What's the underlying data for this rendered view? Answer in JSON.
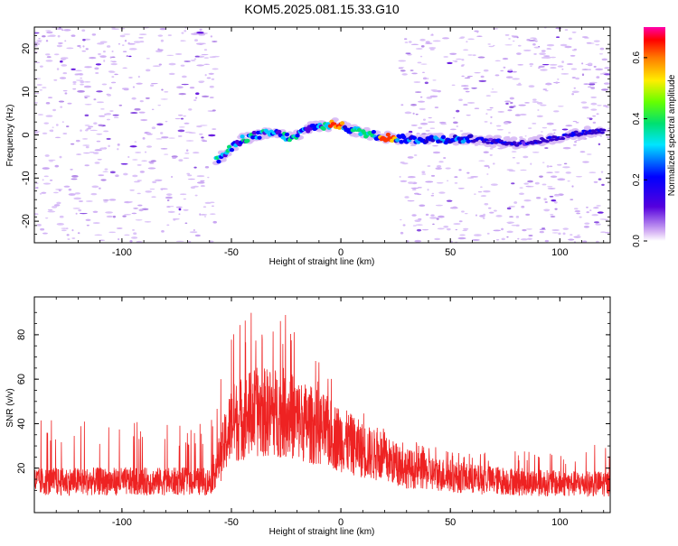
{
  "title": "KOM5.2025.081.15.33.G10",
  "colors": {
    "snr_line": "#ee2222",
    "frame": "#000000",
    "background": "#ffffff"
  },
  "chart_data": [
    {
      "type": "heatmap",
      "xlabel": "Height of straight line (km)",
      "ylabel": "Frequency (Hz)",
      "xlim": [
        -140,
        123
      ],
      "ylim": [
        -25,
        25
      ],
      "xticks": [
        -100,
        -50,
        0,
        50,
        100
      ],
      "yticks": [
        -20,
        -10,
        0,
        10,
        20
      ],
      "colorbar": {
        "label": "Normalized spectral amplitude",
        "range": [
          0,
          0.7
        ],
        "ticks": [
          "0.0",
          "0.2",
          "0.4",
          "0.6"
        ],
        "colormap": "rainbow (white/lavender to magenta)"
      },
      "signal_trace": {
        "x": [
          -57,
          -52,
          -45,
          -38,
          -30,
          -22,
          -17,
          -12,
          -7,
          -2,
          3,
          10,
          20,
          30,
          40,
          50,
          60,
          70,
          80,
          90,
          100,
          110,
          120
        ],
        "freq": [
          -6,
          -4,
          -1,
          0,
          0.5,
          -1,
          1,
          2,
          2,
          2.5,
          1.5,
          0.5,
          -0.5,
          -1,
          -1,
          -1,
          -1,
          -1.5,
          -2,
          -1.5,
          -0.5,
          0.5,
          1
        ]
      },
      "noise_free_gap": [
        -57,
        27
      ]
    },
    {
      "type": "line",
      "xlabel": "Height of straight line (km)",
      "ylabel": "SNR (v/v)",
      "xlim": [
        -140,
        123
      ],
      "ylim": [
        0,
        97
      ],
      "xticks": [
        -100,
        -50,
        0,
        50,
        100
      ],
      "yticks": [
        20,
        40,
        60,
        80
      ],
      "envelope": {
        "x": [
          -140,
          -60,
          -55,
          -50,
          -40,
          -35,
          -25,
          -20,
          -10,
          0,
          10,
          20,
          30,
          40,
          60,
          80,
          100,
          123
        ],
        "mean": [
          14,
          14,
          25,
          40,
          45,
          45,
          45,
          42,
          38,
          33,
          28,
          24,
          20,
          18,
          15,
          14,
          13,
          13
        ],
        "peak": [
          42,
          40,
          60,
          86,
          94,
          80,
          95,
          78,
          68,
          58,
          48,
          38,
          33,
          30,
          28,
          28,
          27,
          32
        ]
      }
    }
  ]
}
